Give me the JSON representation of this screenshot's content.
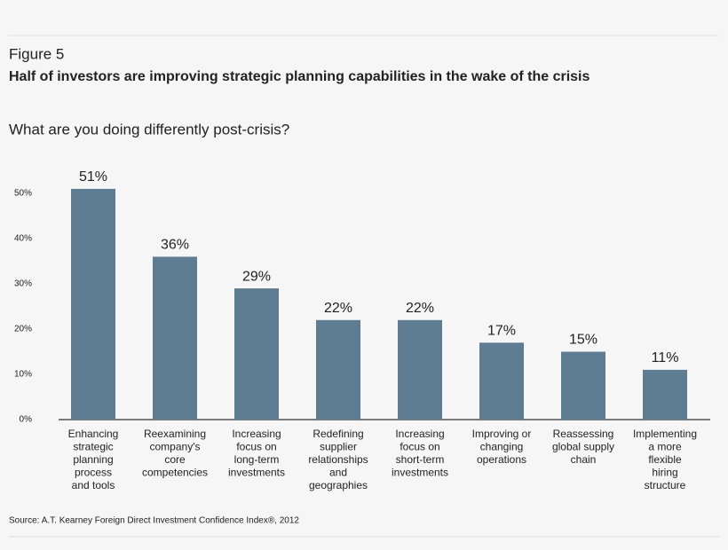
{
  "chart_data": {
    "type": "bar",
    "figure_label": "Figure 5",
    "title": "Half of investors are improving strategic planning capabilities in the wake of the crisis",
    "subtitle": "What are you doing differently post-crisis?",
    "categories": [
      [
        "Enhancing",
        "strategic",
        "planning",
        "process",
        "and tools"
      ],
      [
        "Reexamining",
        "company's",
        "core",
        "competencies"
      ],
      [
        "Increasing",
        "focus on",
        "long-term",
        "investments"
      ],
      [
        "Redefining",
        "supplier",
        "relationships",
        "and",
        "geographies"
      ],
      [
        "Increasing",
        "focus on",
        "short-term",
        "investments"
      ],
      [
        "Improving or",
        "changing",
        "operations"
      ],
      [
        "Reassessing",
        "global supply",
        "chain"
      ],
      [
        "Implementing",
        "a more",
        "flexible",
        "hiring",
        "structure"
      ]
    ],
    "values": [
      51,
      36,
      29,
      22,
      22,
      17,
      15,
      11
    ],
    "value_labels": [
      "51%",
      "36%",
      "29%",
      "22%",
      "22%",
      "17%",
      "15%",
      "11%"
    ],
    "color": "#5f7d92",
    "ylim": [
      0,
      50
    ],
    "yticks": [
      {
        "value": 0,
        "label": "0%"
      },
      {
        "value": 10,
        "label": "10%"
      },
      {
        "value": 20,
        "label": "20%"
      },
      {
        "value": 30,
        "label": "30%"
      },
      {
        "value": 40,
        "label": "40%"
      },
      {
        "value": 50,
        "label": "50%"
      }
    ],
    "source": "Source: A.T. Kearney Foreign Direct Investment Confidence Index®, 2012"
  }
}
